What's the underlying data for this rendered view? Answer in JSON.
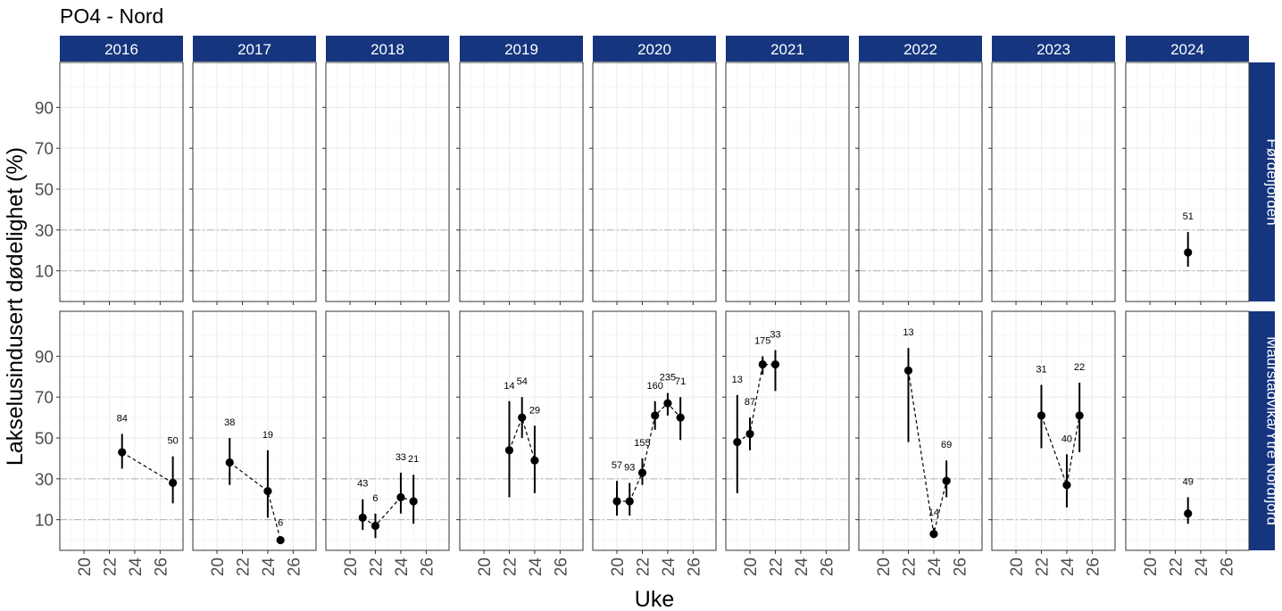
{
  "chart_data": {
    "type": "scatter",
    "title": "PO4 - Nord",
    "xlabel": "Uke",
    "ylabel": "Lakselusindusert dødelighet (%)",
    "years": [
      "2016",
      "2017",
      "2018",
      "2019",
      "2020",
      "2021",
      "2022",
      "2023",
      "2024"
    ],
    "regions": [
      "Førdefjorden",
      "Maurstadvika/Ytre Nordfjord"
    ],
    "xlim": [
      18.1,
      27.8
    ],
    "ylim": [
      -5,
      112
    ],
    "x_ticks": [
      20,
      22,
      24,
      26
    ],
    "y_ticks": [
      10,
      30,
      50,
      70,
      90
    ],
    "reference_lines": [
      10,
      30
    ],
    "colors": {
      "strip": "#15357f",
      "point": "#000000",
      "reference": "#b3b3b3"
    },
    "panels": [
      {
        "region": "Førdefjorden",
        "year": "2024",
        "points": [
          {
            "week": 23,
            "value": 19,
            "low": 12,
            "high": 29,
            "n": "51"
          }
        ]
      },
      {
        "region": "Maurstadvika/Ytre Nordfjord",
        "year": "2016",
        "points": [
          {
            "week": 23,
            "value": 43,
            "low": 35,
            "high": 52,
            "n": "84"
          },
          {
            "week": 27,
            "value": 28,
            "low": 18,
            "high": 41,
            "n": "50"
          }
        ]
      },
      {
        "region": "Maurstadvika/Ytre Nordfjord",
        "year": "2017",
        "points": [
          {
            "week": 21,
            "value": 38,
            "low": 27,
            "high": 50,
            "n": "38"
          },
          {
            "week": 24,
            "value": 24,
            "low": 11,
            "high": 44,
            "n": "19"
          },
          {
            "week": 25,
            "value": 0,
            "low": 0,
            "high": 1,
            "n": "6"
          }
        ]
      },
      {
        "region": "Maurstadvika/Ytre Nordfjord",
        "year": "2018",
        "points": [
          {
            "week": 21,
            "value": 11,
            "low": 5,
            "high": 20,
            "n": "43"
          },
          {
            "week": 22,
            "value": 7,
            "low": 1,
            "high": 13,
            "n": "6"
          },
          {
            "week": 24,
            "value": 21,
            "low": 13,
            "high": 33,
            "n": "33"
          },
          {
            "week": 25,
            "value": 19,
            "low": 8,
            "high": 32,
            "n": "21"
          }
        ]
      },
      {
        "region": "Maurstadvika/Ytre Nordfjord",
        "year": "2019",
        "points": [
          {
            "week": 22,
            "value": 44,
            "low": 21,
            "high": 68,
            "n": "14"
          },
          {
            "week": 23,
            "value": 60,
            "low": 50,
            "high": 70,
            "n": "54"
          },
          {
            "week": 24,
            "value": 39,
            "low": 23,
            "high": 56,
            "n": "29"
          }
        ]
      },
      {
        "region": "Maurstadvika/Ytre Nordfjord",
        "year": "2020",
        "points": [
          {
            "week": 20,
            "value": 19,
            "low": 12,
            "high": 29,
            "n": "57"
          },
          {
            "week": 21,
            "value": 19,
            "low": 12,
            "high": 28,
            "n": "93"
          },
          {
            "week": 22,
            "value": 33,
            "low": 27,
            "high": 40,
            "n": "155"
          },
          {
            "week": 23,
            "value": 61,
            "low": 54,
            "high": 68,
            "n": "160"
          },
          {
            "week": 24,
            "value": 67,
            "low": 61,
            "high": 72,
            "n": "235"
          },
          {
            "week": 25,
            "value": 60,
            "low": 49,
            "high": 70,
            "n": "71"
          }
        ]
      },
      {
        "region": "Maurstadvika/Ytre Nordfjord",
        "year": "2021",
        "points": [
          {
            "week": 19,
            "value": 48,
            "low": 23,
            "high": 71,
            "n": "13"
          },
          {
            "week": 20,
            "value": 52,
            "low": 44,
            "high": 60,
            "n": "87"
          },
          {
            "week": 21,
            "value": 86,
            "low": 81,
            "high": 90,
            "n": "175"
          },
          {
            "week": 22,
            "value": 86,
            "low": 73,
            "high": 93,
            "n": "33"
          }
        ]
      },
      {
        "region": "Maurstadvika/Ytre Nordfjord",
        "year": "2022",
        "points": [
          {
            "week": 22,
            "value": 83,
            "low": 48,
            "high": 94,
            "n": "13"
          },
          {
            "week": 24,
            "value": 3,
            "low": 1,
            "high": 6,
            "n": "14"
          },
          {
            "week": 25,
            "value": 29,
            "low": 21,
            "high": 39,
            "n": "69"
          }
        ]
      },
      {
        "region": "Maurstadvika/Ytre Nordfjord",
        "year": "2023",
        "points": [
          {
            "week": 22,
            "value": 61,
            "low": 45,
            "high": 76,
            "n": "31"
          },
          {
            "week": 24,
            "value": 27,
            "low": 16,
            "high": 42,
            "n": "40"
          },
          {
            "week": 25,
            "value": 61,
            "low": 43,
            "high": 77,
            "n": "22"
          }
        ]
      },
      {
        "region": "Maurstadvika/Ytre Nordfjord",
        "year": "2024",
        "points": [
          {
            "week": 23,
            "value": 13,
            "low": 8,
            "high": 21,
            "n": "49"
          }
        ]
      }
    ]
  }
}
